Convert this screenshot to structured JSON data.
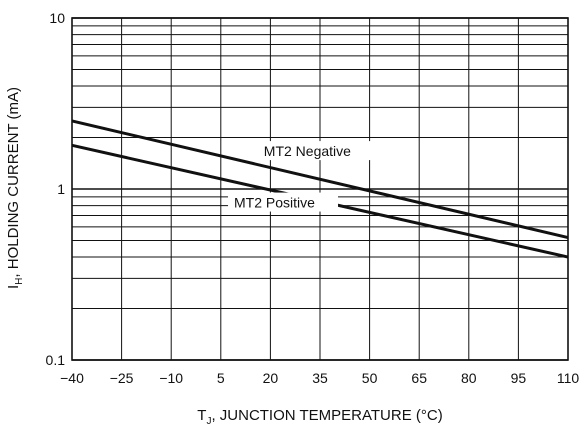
{
  "chart_data": {
    "type": "line",
    "xlabel": "T",
    "xlabel_sub": "J",
    "xlabel_rest": ", JUNCTION TEMPERATURE (°C)",
    "ylabel": "I",
    "ylabel_sub": "H",
    "ylabel_rest": ", HOLDING CURRENT (mA)",
    "x_ticks": [
      "−40",
      "−25",
      "−10",
      "5",
      "20",
      "35",
      "50",
      "65",
      "80",
      "95",
      "110"
    ],
    "y_ticks": [
      "0.1",
      "1",
      "10"
    ],
    "xlim": [
      -40,
      110
    ],
    "ylim": [
      0.1,
      10
    ],
    "y_scale": "log",
    "grid": true,
    "series": [
      {
        "name": "MT2 Negative",
        "x": [
          -40,
          110
        ],
        "y": [
          2.5,
          0.52
        ]
      },
      {
        "name": "MT2 Positive",
        "x": [
          -40,
          110
        ],
        "y": [
          1.8,
          0.4
        ]
      }
    ],
    "annotations": [
      "MT2 Negative",
      "MT2 Positive"
    ],
    "colors": {
      "line": "#111111",
      "grid": "#111111",
      "background": "#ffffff"
    }
  }
}
